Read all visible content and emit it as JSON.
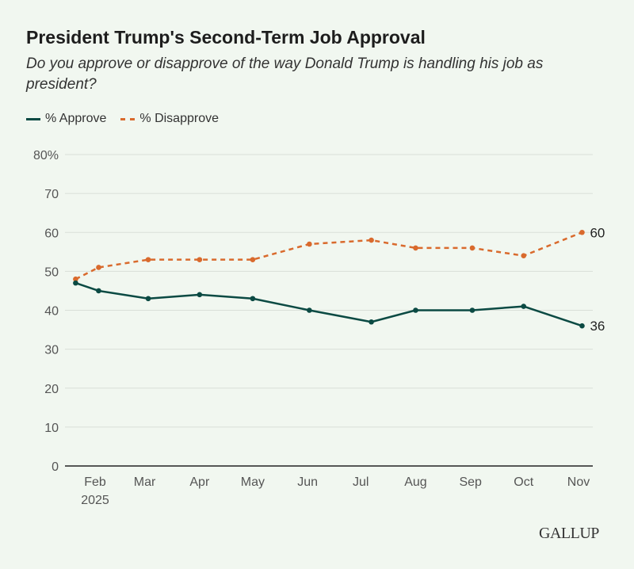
{
  "chart_data": {
    "type": "line",
    "title": "President Trump's Second-Term Job Approval",
    "subtitle": "Do you approve or disapprove of the way Donald Trump is handling his job as president?",
    "xlabel": "",
    "ylabel": "",
    "ylim": [
      0,
      80
    ],
    "yticks": [
      0,
      10,
      20,
      30,
      40,
      50,
      60,
      70,
      80
    ],
    "ytick_labels": [
      "0",
      "10",
      "20",
      "30",
      "40",
      "50",
      "60",
      "70",
      "80%"
    ],
    "xtick_dates": [
      "2025-02-01",
      "2025-03-01",
      "2025-04-01",
      "2025-05-01",
      "2025-06-01",
      "2025-07-01",
      "2025-08-01",
      "2025-09-01",
      "2025-10-01",
      "2025-11-01"
    ],
    "xtick_labels": [
      "Feb",
      "Mar",
      "Apr",
      "May",
      "Jun",
      "Jul",
      "Aug",
      "Sep",
      "Oct",
      "Nov"
    ],
    "xtick_year": "2025",
    "grid": true,
    "legend_position": "top-left",
    "x": [
      "2025-01-21",
      "2025-02-03",
      "2025-03-03",
      "2025-04-01",
      "2025-05-01",
      "2025-06-02",
      "2025-07-07",
      "2025-08-01",
      "2025-09-02",
      "2025-10-01",
      "2025-11-03"
    ],
    "series": [
      {
        "name": "% Approve",
        "color": "#0b4a43",
        "dash": false,
        "values": [
          47,
          45,
          43,
          44,
          43,
          40,
          37,
          40,
          40,
          41,
          36
        ],
        "end_label": "36"
      },
      {
        "name": "% Disapprove",
        "color": "#d96a2d",
        "dash": true,
        "values": [
          48,
          51,
          53,
          53,
          53,
          57,
          58,
          56,
          56,
          54,
          60
        ],
        "end_label": "60"
      }
    ]
  },
  "logo": "GALLUP"
}
